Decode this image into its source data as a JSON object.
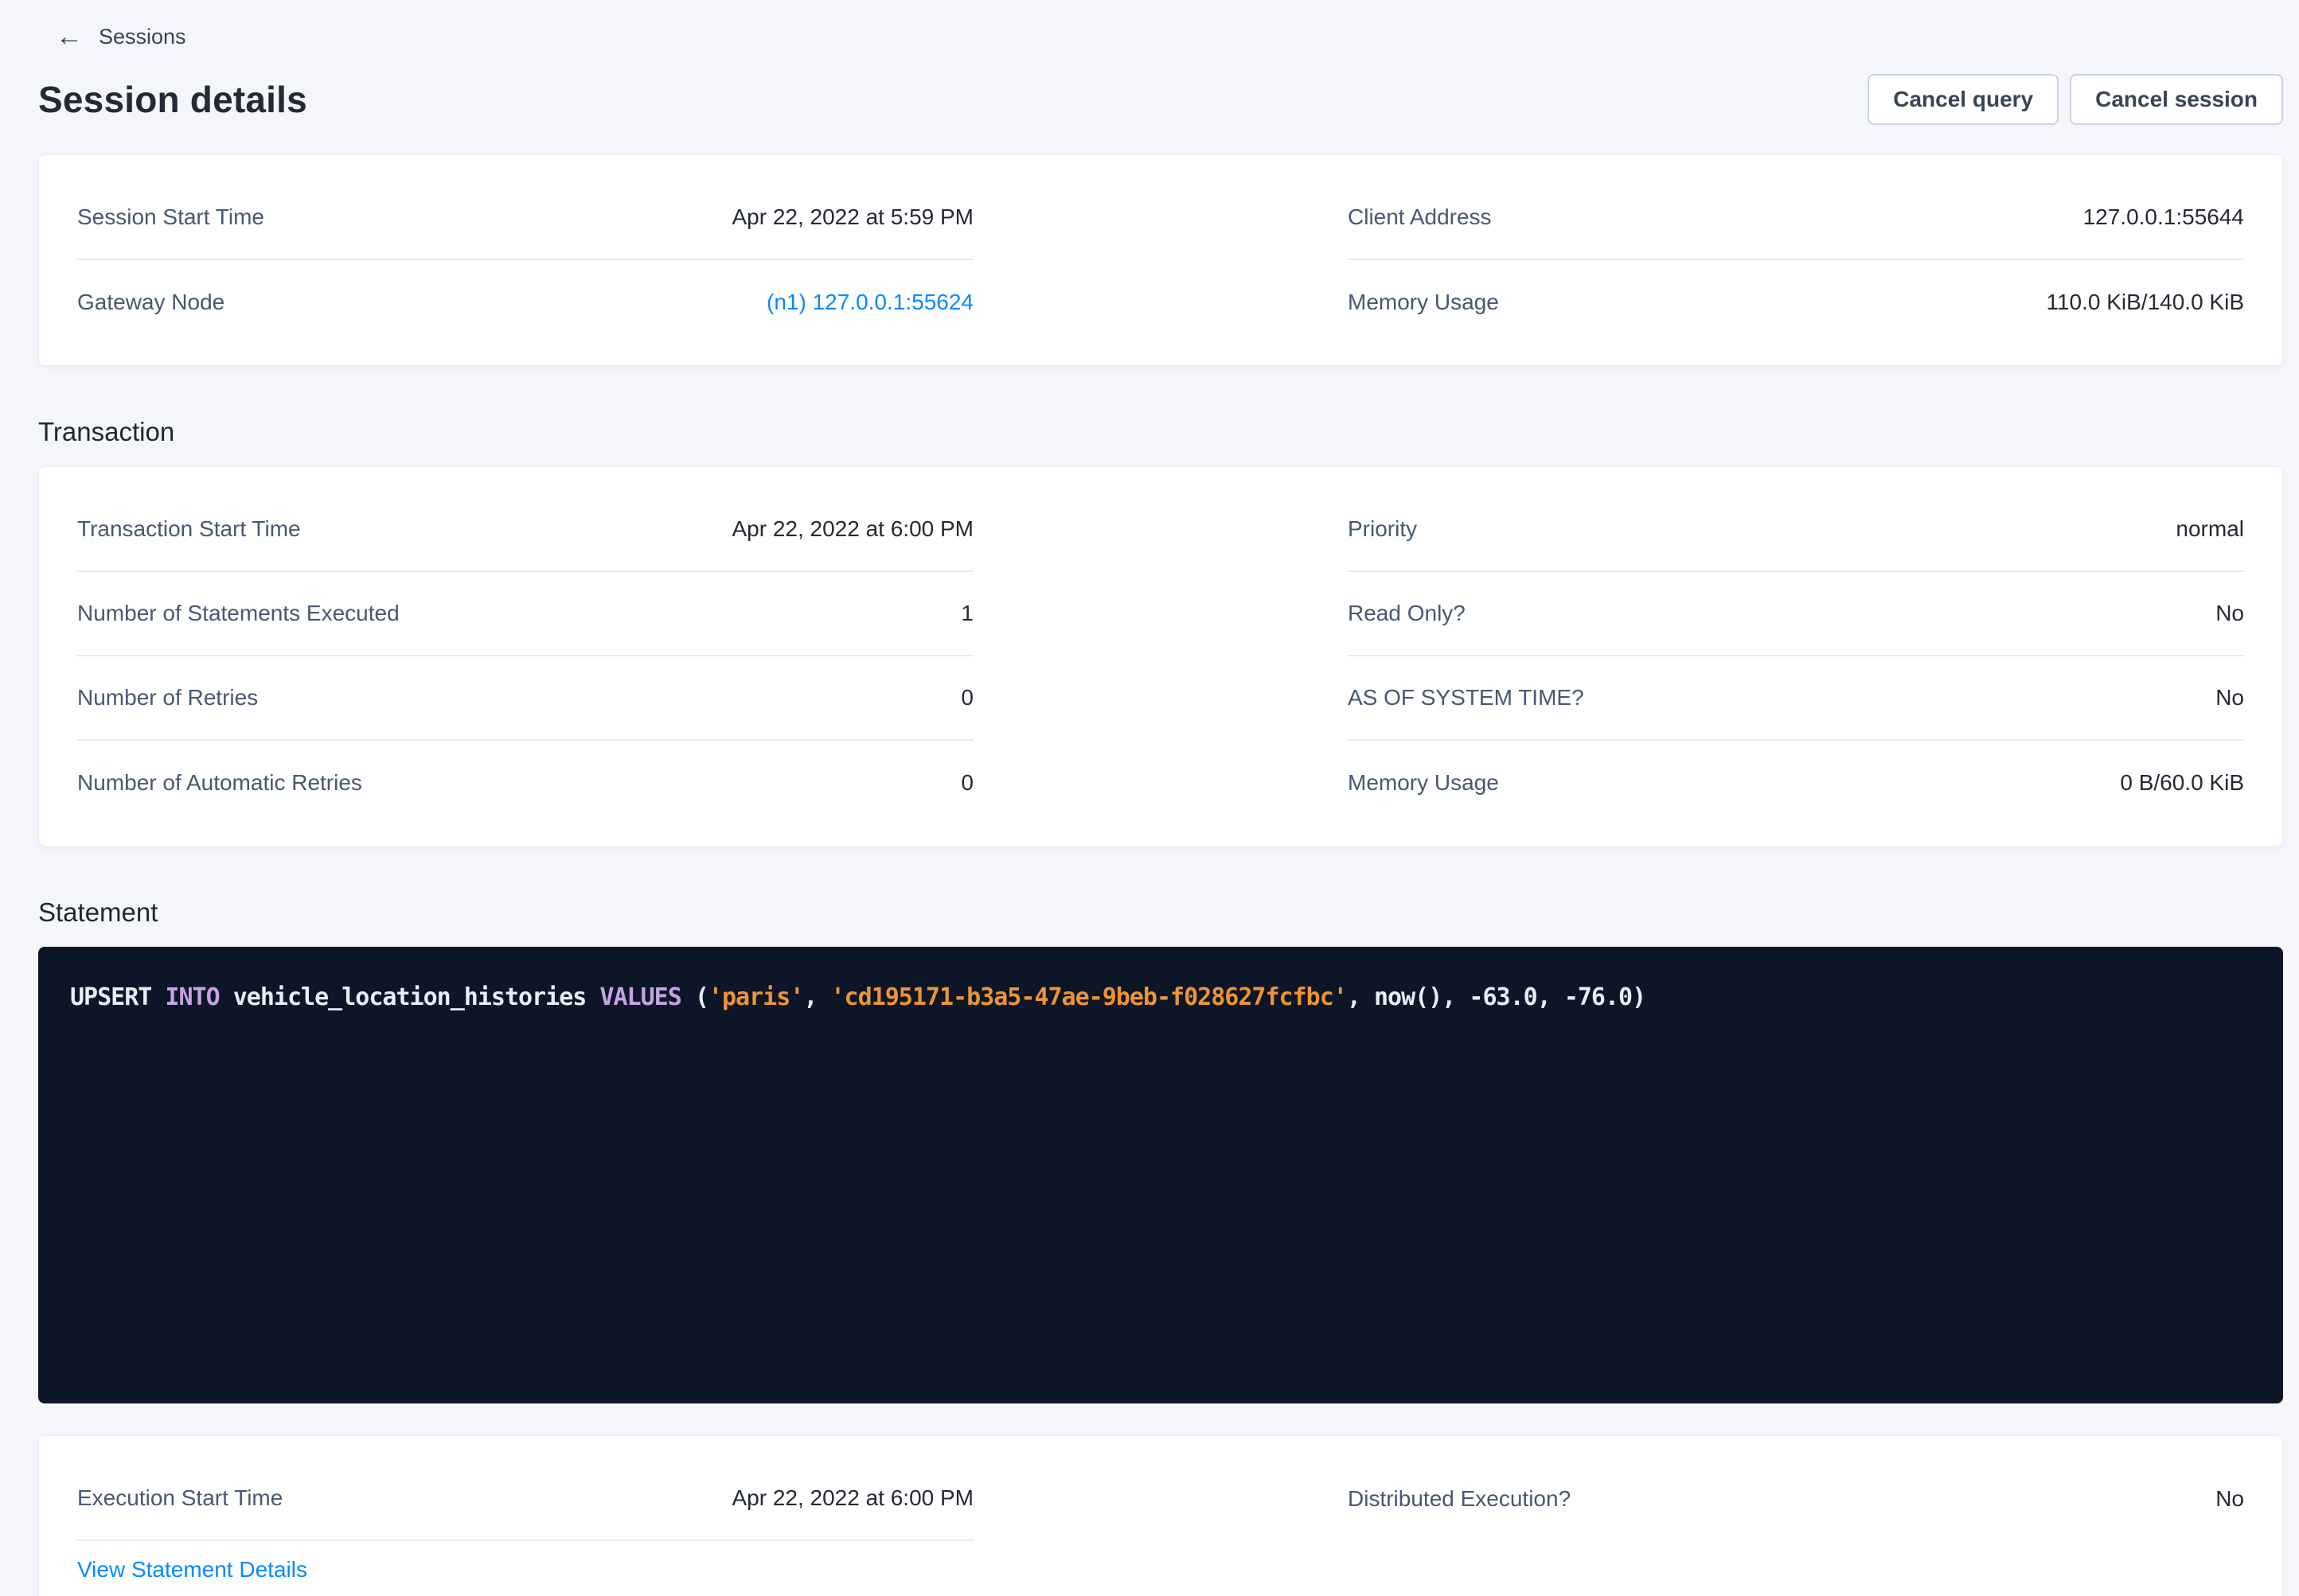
{
  "breadcrumb": {
    "label": "Sessions",
    "back_icon": "←"
  },
  "header": {
    "title": "Session details",
    "cancel_query_label": "Cancel query",
    "cancel_session_label": "Cancel session"
  },
  "session_card": {
    "left": [
      {
        "label": "Session Start Time",
        "value": "Apr 22, 2022 at 5:59 PM"
      },
      {
        "label": "Gateway Node",
        "value": "(n1) 127.0.0.1:55624"
      }
    ],
    "right": [
      {
        "label": "Client Address",
        "value": "127.0.0.1:55644"
      },
      {
        "label": "Memory Usage",
        "value": "110.0 KiB/140.0 KiB"
      }
    ]
  },
  "transaction": {
    "heading": "Transaction",
    "left": [
      {
        "label": "Transaction Start Time",
        "value": "Apr 22, 2022 at 6:00 PM"
      },
      {
        "label": "Number of Statements Executed",
        "value": "1"
      },
      {
        "label": "Number of Retries",
        "value": "0"
      },
      {
        "label": "Number of Automatic Retries",
        "value": "0"
      }
    ],
    "right": [
      {
        "label": "Priority",
        "value": "normal"
      },
      {
        "label": "Read Only?",
        "value": "No"
      },
      {
        "label": "AS OF SYSTEM TIME?",
        "value": "No"
      },
      {
        "label": "Memory Usage",
        "value": "0 B/60.0 KiB"
      }
    ]
  },
  "statement": {
    "heading": "Statement",
    "sql_text": "UPSERT INTO vehicle_location_histories VALUES ('paris', 'cd195171-b3a5-47ae-9beb-f028627fcfbc', now(), -63.0, -76.0)",
    "tokens": [
      {
        "t": "plain",
        "text": "UPSERT "
      },
      {
        "t": "keyword",
        "text": "INTO"
      },
      {
        "t": "plain",
        "text": " vehicle_location_histories "
      },
      {
        "t": "keyword",
        "text": "VALUES"
      },
      {
        "t": "plain",
        "text": " ("
      },
      {
        "t": "string",
        "text": "'paris'"
      },
      {
        "t": "plain",
        "text": ", "
      },
      {
        "t": "string",
        "text": "'cd195171-b3a5-47ae-9beb-f028627fcfbc'"
      },
      {
        "t": "plain",
        "text": ", now(), -63.0, -76.0)"
      }
    ],
    "colors": {
      "background": "#0d1626",
      "plain": "#e9edf4",
      "keyword": "#c5a3e3",
      "string": "#ee9434"
    }
  },
  "execution_card": {
    "left": [
      {
        "label": "Execution Start Time",
        "value": "Apr 22, 2022 at 6:00 PM"
      }
    ],
    "link_label": "View Statement Details",
    "right": [
      {
        "label": "Distributed Execution?",
        "value": "No"
      }
    ]
  },
  "colors": {
    "page_background": "#f4f6fa",
    "card_background": "#ffffff",
    "label_text": "#475872",
    "value_text": "#242a35",
    "link_blue": "#0788ff",
    "divider": "#e7ebf2",
    "button_border": "#ccd3e0"
  }
}
